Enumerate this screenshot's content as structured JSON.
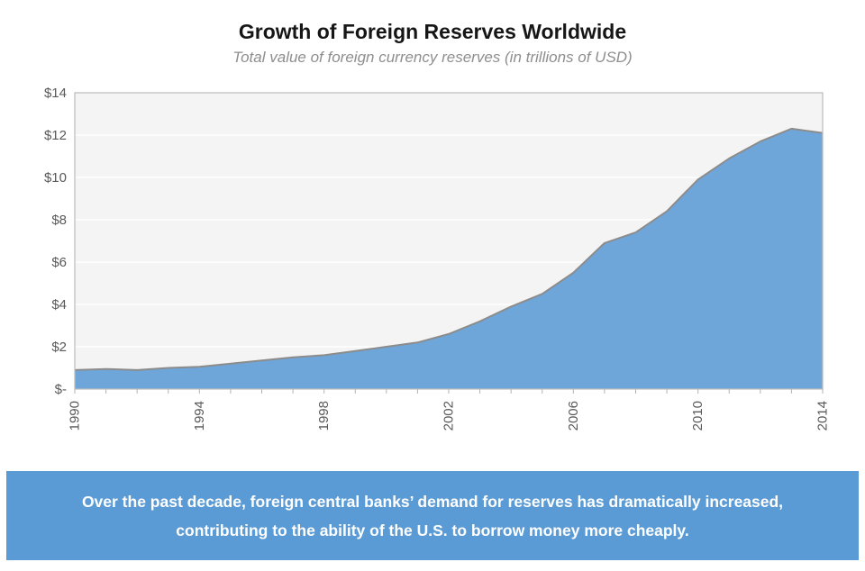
{
  "chart_data": {
    "type": "area",
    "title": "Growth of Foreign Reserves Worldwide",
    "subtitle": "Total value of foreign currency reserves (in trillions of USD)",
    "x": [
      1990,
      1991,
      1992,
      1993,
      1994,
      1995,
      1996,
      1997,
      1998,
      1999,
      2000,
      2001,
      2002,
      2003,
      2004,
      2005,
      2006,
      2007,
      2008,
      2009,
      2010,
      2011,
      2012,
      2013,
      2014
    ],
    "values": [
      0.9,
      0.95,
      0.9,
      1.0,
      1.05,
      1.2,
      1.35,
      1.5,
      1.6,
      1.8,
      2.0,
      2.2,
      2.6,
      3.2,
      3.9,
      4.5,
      5.5,
      6.9,
      7.4,
      8.4,
      9.9,
      10.9,
      11.7,
      12.3,
      12.1
    ],
    "xlabel": "",
    "ylabel": "",
    "ylim": [
      0,
      14
    ],
    "y_tick_step": 2,
    "y_tick_labels": [
      "$-",
      "$2",
      "$4",
      "$6",
      "$8",
      "$10",
      "$12",
      "$14"
    ],
    "x_tick_labels": [
      "1990",
      "1994",
      "1998",
      "2002",
      "2006",
      "2010",
      "2014"
    ],
    "x_minor_tick_every_year": true,
    "grid": "horizontal",
    "legend": "none",
    "colors": {
      "area_fill": "#6fa6d9",
      "line_stroke": "#8c8c8c",
      "plot_background": "#f4f4f4",
      "gridline": "#ffffff",
      "plot_border": "#bcbcbc",
      "tick": "#b3b3b3",
      "axis_text": "#595959",
      "title_text": "#161616",
      "subtitle_text": "#8e8e8e"
    }
  },
  "caption": {
    "line1": "Over the past decade, foreign central banks’ demand for reserves has dramatically increased,",
    "line2": "contributing to the ability of the U.S. to borrow money more cheaply.",
    "background": "#5b9bd5",
    "text_color": "#ffffff"
  }
}
